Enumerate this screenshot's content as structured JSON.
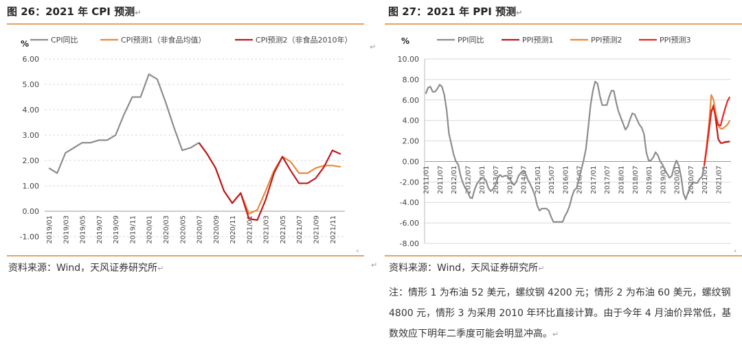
{
  "left": {
    "title": "图 26：2021 年 CPI 预测",
    "source": "资料来源：Wind，天风证券研究所",
    "chart_data": {
      "type": "line",
      "ylabel": "%",
      "ylim": [
        -1,
        6
      ],
      "yticks": [
        "-1.00",
        "0.00",
        "1.00",
        "2.00",
        "3.00",
        "4.00",
        "5.00",
        "6.00"
      ],
      "xticks": [
        "2019/01",
        "2019/03",
        "2019/05",
        "2019/07",
        "2019/09",
        "2019/11",
        "2020/01",
        "2020/03",
        "2020/05",
        "2020/07",
        "2020/09",
        "2020/11",
        "2021/01",
        "2021/03",
        "2021/05",
        "2021/07",
        "2021/09",
        "2021/11"
      ],
      "n_months": 36,
      "series": [
        {
          "name": "CPI同比",
          "color": "#8c8c8c",
          "start": 0,
          "values": [
            1.7,
            1.5,
            2.3,
            2.5,
            2.7,
            2.7,
            2.8,
            2.8,
            3.0,
            3.8,
            4.5,
            4.5,
            5.4,
            5.2,
            4.3,
            3.3,
            2.4,
            2.5,
            2.7
          ]
        },
        {
          "name": "CPI预测1（非食品均值）",
          "color": "#e8883a",
          "start": 18,
          "values": [
            2.7,
            2.25,
            1.7,
            0.8,
            0.32,
            0.72,
            -0.1,
            0.05,
            0.8,
            1.6,
            2.15,
            1.95,
            1.5,
            1.5,
            1.7,
            1.8,
            1.8,
            1.75
          ]
        },
        {
          "name": "CPI预测2（非食品2010年）",
          "color": "#c0161b",
          "start": 18,
          "values": [
            2.7,
            2.25,
            1.7,
            0.8,
            0.32,
            0.72,
            -0.3,
            -0.35,
            0.45,
            1.5,
            2.15,
            1.6,
            1.1,
            1.1,
            1.3,
            1.75,
            2.4,
            2.25
          ]
        }
      ]
    }
  },
  "right": {
    "title": "图 27：2021 年 PPI 预测",
    "source": "资料来源：Wind，天风证券研究所",
    "note": "注：情形 1 为布油 52 美元，螺纹钢 4200 元；情形 2 为布油 60 美元，螺纹钢 4800 元，情形 3 为采用 2010 年环比直接计算。由于今年 4 月油价异常低，基数效应下明年二季度可能会明显冲高。",
    "chart_data": {
      "type": "line",
      "ylabel": "%",
      "ylim": [
        -8,
        10
      ],
      "yticks": [
        "-8.00",
        "-6.00",
        "-4.00",
        "-2.00",
        "0.00",
        "2.00",
        "4.00",
        "6.00",
        "8.00",
        "10.00"
      ],
      "xticks": [
        "2011/01",
        "2011/07",
        "2012/01",
        "2012/07",
        "2013/01",
        "2013/07",
        "2014/01",
        "2014/07",
        "2015/01",
        "2015/07",
        "2016/01",
        "2016/07",
        "2017/01",
        "2017/07",
        "2018/01",
        "2018/07",
        "2019/01",
        "2019/07",
        "2020/01",
        "2020/07",
        "2021/01",
        "2021/07"
      ],
      "n_months": 132,
      "series": [
        {
          "name": "PPI同比",
          "color": "#8c8c8c",
          "start": 0,
          "values": [
            6.6,
            7.2,
            7.3,
            6.8,
            6.8,
            7.1,
            7.5,
            7.3,
            6.5,
            5.0,
            2.7,
            1.7,
            0.7,
            0.0,
            -0.3,
            -1.4,
            -2.1,
            -2.6,
            -2.9,
            -3.5,
            -3.6,
            -2.8,
            -2.2,
            -1.9,
            -1.6,
            -1.6,
            -1.9,
            -2.6,
            -2.9,
            -2.7,
            -2.3,
            -1.6,
            -1.3,
            -1.5,
            -1.4,
            -1.4,
            -1.6,
            -2.0,
            -2.3,
            -2.0,
            -1.4,
            -1.1,
            -0.9,
            -1.2,
            -1.8,
            -2.2,
            -2.7,
            -3.3,
            -4.3,
            -4.8,
            -4.6,
            -4.6,
            -4.6,
            -4.8,
            -5.4,
            -5.9,
            -5.9,
            -5.9,
            -5.9,
            -5.9,
            -5.3,
            -4.9,
            -4.3,
            -3.4,
            -2.8,
            -2.6,
            -1.7,
            -0.8,
            0.1,
            1.2,
            3.3,
            5.5,
            6.9,
            7.8,
            7.6,
            6.4,
            5.5,
            5.5,
            5.5,
            6.3,
            6.9,
            6.9,
            5.8,
            4.9,
            4.3,
            3.7,
            3.1,
            3.4,
            4.1,
            4.7,
            4.6,
            4.1,
            3.6,
            3.3,
            2.7,
            0.9,
            0.1,
            0.1,
            0.4,
            0.9,
            0.6,
            0.0,
            -0.3,
            -0.8,
            -1.2,
            -1.6,
            -1.4,
            -0.5,
            0.1,
            -0.4,
            -1.5,
            -3.1,
            -3.7,
            -3.0,
            -2.4,
            -2.0,
            -2.1,
            -2.1,
            -1.7,
            -1.5,
            -0.4
          ]
        },
        {
          "name": "PPI预测1",
          "color": "#c0161b",
          "start": 120,
          "values": [
            -0.4,
            1.2,
            3.0,
            4.8,
            5.5,
            4.0,
            2.2,
            1.8,
            1.8,
            1.9,
            1.9,
            1.95
          ]
        },
        {
          "name": "PPI预测2",
          "color": "#e8883a",
          "start": 120,
          "values": [
            -0.4,
            1.5,
            3.6,
            6.5,
            6.0,
            4.6,
            3.5,
            3.2,
            3.2,
            3.4,
            3.6,
            4.0
          ]
        },
        {
          "name": "PPI预测3",
          "color": "#e8231f",
          "start": 120,
          "values": [
            -0.4,
            1.3,
            3.2,
            5.0,
            5.2,
            4.3,
            3.6,
            3.5,
            4.4,
            5.2,
            5.9,
            6.3
          ]
        }
      ]
    }
  }
}
